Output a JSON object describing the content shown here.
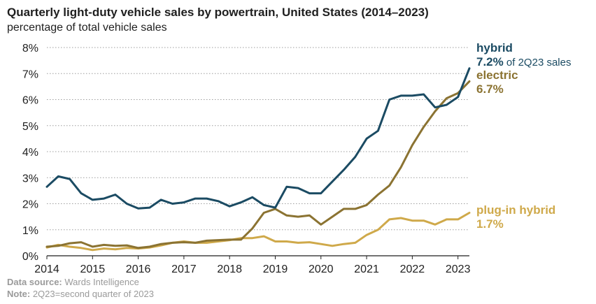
{
  "title": "Quarterly light-duty vehicle sales by powertrain, United States (2014–2023)",
  "subtitle": "percentage of total vehicle sales",
  "footer": {
    "source_label": "Data source:",
    "source_text": " Wards Intelligence",
    "note_label": "Note:",
    "note_text": " 2Q23=second quarter of 2023"
  },
  "chart_data": {
    "type": "line",
    "title": "Quarterly light-duty vehicle sales by powertrain, United States (2014–2023)",
    "ylabel": "percentage of total vehicle sales",
    "ylim": [
      0,
      8
    ],
    "yticks": [
      0,
      1,
      2,
      3,
      4,
      5,
      6,
      7,
      8
    ],
    "ytick_labels": [
      "0%",
      "1%",
      "2%",
      "3%",
      "4%",
      "5%",
      "6%",
      "7%",
      "8%"
    ],
    "xlim": [
      2014,
      2023.25
    ],
    "xticks": [
      2014,
      2015,
      2016,
      2017,
      2018,
      2019,
      2020,
      2021,
      2022,
      2023
    ],
    "xtick_labels": [
      "2014",
      "2015",
      "2016",
      "2017",
      "2018",
      "2019",
      "2020",
      "2021",
      "2022",
      "2023"
    ],
    "grid": "horizontal",
    "series": [
      {
        "name": "hybrid",
        "color": "#1b4b63",
        "annotation": [
          "hybrid",
          "7.2%",
          " of 2Q23 sales"
        ],
        "x": [
          2014.0,
          2014.25,
          2014.5,
          2014.75,
          2015.0,
          2015.25,
          2015.5,
          2015.75,
          2016.0,
          2016.25,
          2016.5,
          2016.75,
          2017.0,
          2017.25,
          2017.5,
          2017.75,
          2018.0,
          2018.25,
          2018.5,
          2018.75,
          2019.0,
          2019.25,
          2019.5,
          2019.75,
          2020.0,
          2020.25,
          2020.5,
          2020.75,
          2021.0,
          2021.25,
          2021.5,
          2021.75,
          2022.0,
          2022.25,
          2022.5,
          2022.75,
          2023.0,
          2023.25
        ],
        "values": [
          2.65,
          3.05,
          2.95,
          2.4,
          2.15,
          2.2,
          2.35,
          2.0,
          1.82,
          1.85,
          2.15,
          2.0,
          2.05,
          2.2,
          2.2,
          2.1,
          1.9,
          2.05,
          2.25,
          1.95,
          1.85,
          2.65,
          2.6,
          2.4,
          2.4,
          2.85,
          3.3,
          3.8,
          4.5,
          4.8,
          6.0,
          6.15,
          6.15,
          6.2,
          5.7,
          5.8,
          6.1,
          7.2
        ]
      },
      {
        "name": "electric",
        "color": "#8b7332",
        "annotation": [
          "electric",
          "6.7%"
        ],
        "x": [
          2014.0,
          2014.25,
          2014.5,
          2014.75,
          2015.0,
          2015.25,
          2015.5,
          2015.75,
          2016.0,
          2016.25,
          2016.5,
          2016.75,
          2017.0,
          2017.25,
          2017.5,
          2017.75,
          2018.0,
          2018.25,
          2018.5,
          2018.75,
          2019.0,
          2019.25,
          2019.5,
          2019.75,
          2020.0,
          2020.25,
          2020.5,
          2020.75,
          2021.0,
          2021.25,
          2021.5,
          2021.75,
          2022.0,
          2022.25,
          2022.5,
          2022.75,
          2023.0,
          2023.25
        ],
        "values": [
          0.35,
          0.38,
          0.48,
          0.52,
          0.35,
          0.42,
          0.38,
          0.4,
          0.3,
          0.35,
          0.45,
          0.5,
          0.52,
          0.5,
          0.58,
          0.6,
          0.62,
          0.62,
          1.05,
          1.65,
          1.8,
          1.55,
          1.5,
          1.55,
          1.2,
          1.5,
          1.8,
          1.8,
          1.95,
          2.35,
          2.7,
          3.4,
          4.25,
          4.95,
          5.55,
          6.05,
          6.25,
          6.7
        ]
      },
      {
        "name": "plug-in hybrid",
        "color": "#cfa94a",
        "annotation": [
          "plug-in hybrid",
          "1.7%"
        ],
        "x": [
          2014.0,
          2014.25,
          2014.5,
          2014.75,
          2015.0,
          2015.25,
          2015.5,
          2015.75,
          2016.0,
          2016.25,
          2016.5,
          2016.75,
          2017.0,
          2017.25,
          2017.5,
          2017.75,
          2018.0,
          2018.25,
          2018.5,
          2018.75,
          2019.0,
          2019.25,
          2019.5,
          2019.75,
          2020.0,
          2020.25,
          2020.5,
          2020.75,
          2021.0,
          2021.25,
          2021.5,
          2021.75,
          2022.0,
          2022.25,
          2022.5,
          2022.75,
          2023.0,
          2023.25
        ],
        "values": [
          0.32,
          0.42,
          0.35,
          0.3,
          0.22,
          0.28,
          0.25,
          0.3,
          0.28,
          0.32,
          0.4,
          0.5,
          0.55,
          0.5,
          0.5,
          0.55,
          0.6,
          0.68,
          0.68,
          0.75,
          0.55,
          0.55,
          0.5,
          0.52,
          0.45,
          0.38,
          0.45,
          0.5,
          0.8,
          1.0,
          1.4,
          1.45,
          1.35,
          1.35,
          1.2,
          1.4,
          1.4,
          1.65
        ]
      }
    ]
  }
}
